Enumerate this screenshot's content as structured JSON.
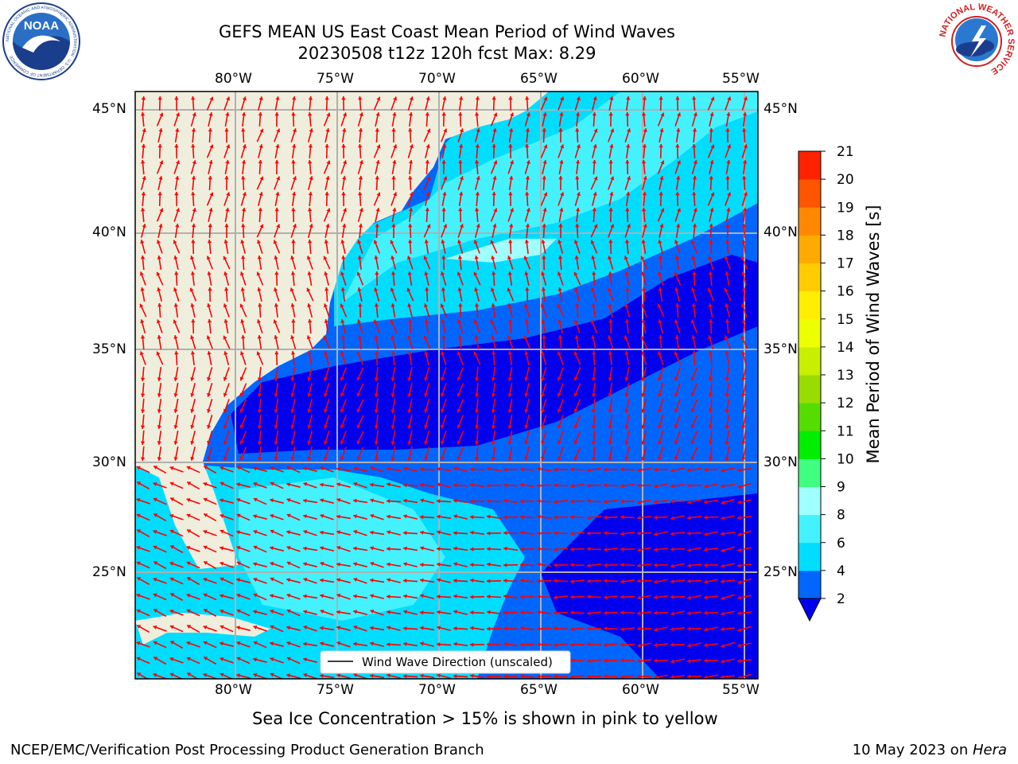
{
  "header": {
    "title_line1": "GEFS MEAN US East Coast Mean Period of Wind Waves",
    "title_line2": "20230508 t12z 120h fcst   Max: 8.29"
  },
  "logos": {
    "left_text": "NOAA",
    "left_ring_text": "NATIONAL OCEANIC AND ATMOSPHERIC ADMINISTRATION · U.S. DEPARTMENT OF COMMERCE",
    "right_ring_text": "NATIONAL WEATHER SERVICE"
  },
  "map": {
    "lon_ticks": [
      "80°W",
      "75°W",
      "70°W",
      "65°W",
      "60°W",
      "55°W"
    ],
    "lat_ticks": [
      "45°N",
      "40°N",
      "35°N",
      "30°N",
      "25°N"
    ],
    "legend_label": "Wind Wave Direction (unscaled)",
    "vector_color": "#ff0000",
    "land_color": "#efeedd"
  },
  "colorbar": {
    "label": "Mean Period of Wind Waves [s]",
    "ticks": [
      "2",
      "4",
      "6",
      "8",
      "9",
      "10",
      "11",
      "12",
      "13",
      "14",
      "15",
      "16",
      "17",
      "18",
      "19",
      "20",
      "21"
    ],
    "colors": [
      "#0066ff",
      "#00ddff",
      "#44f2ff",
      "#a0ffff",
      "#40ff80",
      "#00ee00",
      "#55dd00",
      "#99dd00",
      "#c8ee00",
      "#eeff00",
      "#ffee00",
      "#ffcc00",
      "#ffaa00",
      "#ff8800",
      "#ff5500",
      "#ff2200",
      "#ff0000"
    ],
    "under_color": "#0000ee"
  },
  "footer": {
    "caption": "Sea Ice Concentration > 15% is shown in pink to yellow",
    "credit": "NCEP/EMC/Verification Post Processing Product Generation Branch",
    "date": "10 May 2023 on ",
    "machine": "Hera"
  }
}
